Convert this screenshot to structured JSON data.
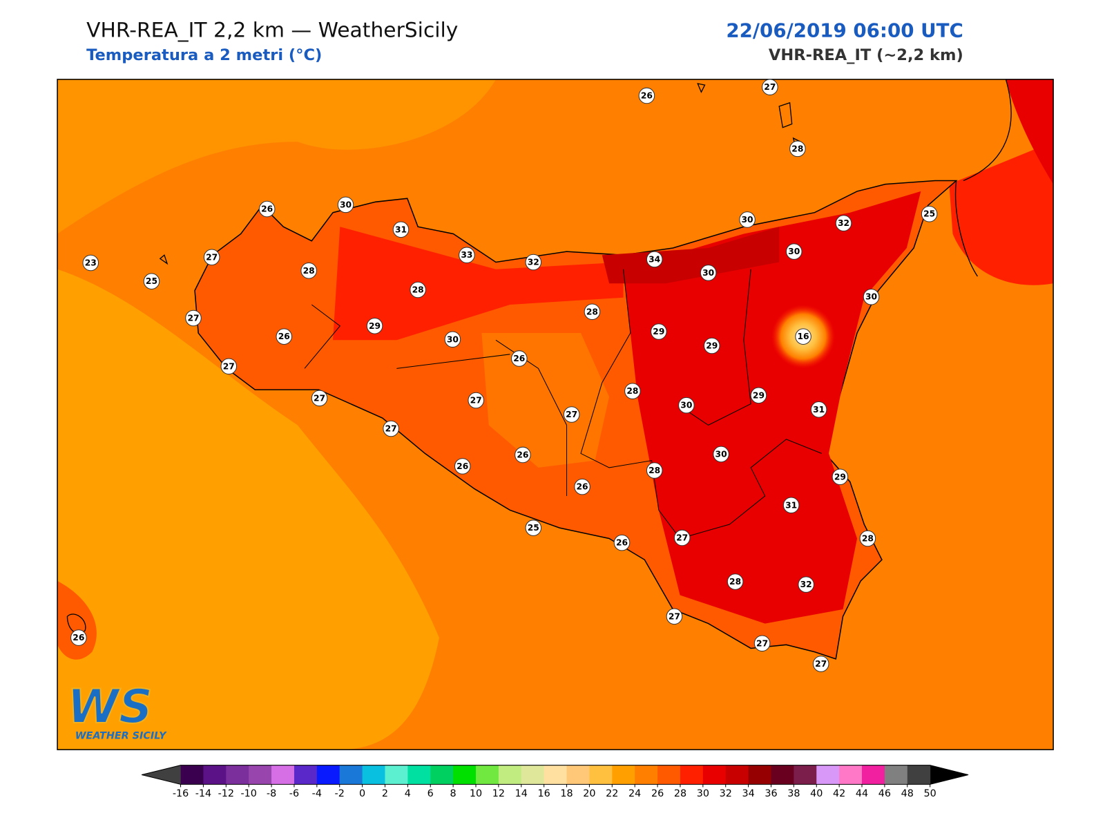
{
  "header": {
    "title": "VHR-REA_IT 2,2 km — WeatherSicily",
    "subtitle": "Temperatura a 2 metri (°C)",
    "datetime": "22/06/2019 06:00 UTC",
    "model": "VHR-REA_IT (~2,2 km)"
  },
  "stations": [
    26,
    27,
    28,
    26,
    30,
    31,
    33,
    32,
    34,
    30,
    32,
    25,
    30,
    30,
    30,
    23,
    27,
    25,
    28,
    28,
    28,
    27,
    26,
    29,
    30,
    29,
    29,
    16,
    27,
    26,
    27,
    27,
    27,
    28,
    30,
    29,
    31,
    27,
    26,
    26,
    30,
    28,
    26,
    29,
    31,
    25,
    26,
    27,
    28,
    28,
    32,
    27,
    26,
    27,
    27
  ],
  "colorbar": {
    "ticks": [
      -16,
      -14,
      -12,
      -10,
      -8,
      -6,
      -4,
      -2,
      0,
      2,
      4,
      6,
      8,
      10,
      12,
      14,
      16,
      18,
      20,
      22,
      24,
      26,
      28,
      30,
      32,
      34,
      36,
      38,
      40,
      42,
      44,
      46,
      48,
      50
    ],
    "colors": [
      "#3a004f",
      "#5b1287",
      "#7b2f9c",
      "#9846ae",
      "#d66fe6",
      "#5a28c8",
      "#0a1aff",
      "#1a78d8",
      "#0ac0e0",
      "#5cf0d0",
      "#00e0a0",
      "#00d060",
      "#00e000",
      "#70e840",
      "#c0ec80",
      "#dfe89a",
      "#ffe0a0",
      "#ffc878",
      "#ffc040",
      "#ffa000",
      "#ff8000",
      "#ff5a00",
      "#ff2000",
      "#e80000",
      "#c80000",
      "#960000",
      "#6a0020",
      "#7c1e4c",
      "#d898f8",
      "#ff78c8",
      "#f020a0",
      "#808080",
      "#404040"
    ],
    "under_color": "#404040",
    "over_color": "#000000"
  },
  "logo": {
    "mark": "WS",
    "name": "WEATHER SICILY"
  }
}
